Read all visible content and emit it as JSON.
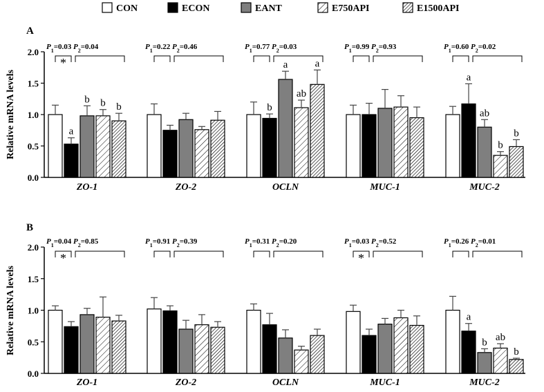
{
  "legend": {
    "items": [
      {
        "label": "CON",
        "pattern": "white"
      },
      {
        "label": "ECON",
        "pattern": "black"
      },
      {
        "label": "EANT",
        "pattern": "gray"
      },
      {
        "label": "E750API",
        "pattern": "sparse-hatch"
      },
      {
        "label": "E1500API",
        "pattern": "dense-hatch"
      }
    ]
  },
  "colors": {
    "axis": "#000000",
    "gray": "#7f7f7f",
    "black": "#000000",
    "white": "#ffffff"
  },
  "chart_data": [
    {
      "panel": "A",
      "type": "bar",
      "ylabel": "Relative mRNA levels",
      "ylim": [
        0,
        2.0
      ],
      "yticks": [
        "0.0",
        "0.5",
        "1.0",
        "1.5",
        "2.0"
      ],
      "categories": [
        "ZO-1",
        "ZO-2",
        "OCLN",
        "MUC-1",
        "MUC-2"
      ],
      "series": [
        {
          "name": "CON",
          "values": [
            1.0,
            1.0,
            1.0,
            1.0,
            1.0
          ],
          "errors": [
            0.15,
            0.17,
            0.2,
            0.15,
            0.13
          ]
        },
        {
          "name": "ECON",
          "values": [
            0.53,
            0.75,
            0.94,
            1.0,
            1.17
          ],
          "errors": [
            0.1,
            0.08,
            0.07,
            0.18,
            0.32
          ]
        },
        {
          "name": "EANT",
          "values": [
            0.98,
            0.92,
            1.56,
            1.1,
            0.8
          ],
          "errors": [
            0.16,
            0.1,
            0.13,
            0.3,
            0.12
          ]
        },
        {
          "name": "E750API",
          "values": [
            0.98,
            0.76,
            1.11,
            1.12,
            0.35
          ],
          "errors": [
            0.1,
            0.05,
            0.12,
            0.18,
            0.06
          ]
        },
        {
          "name": "E1500API",
          "values": [
            0.9,
            0.91,
            1.48,
            0.95,
            0.49
          ],
          "errors": [
            0.12,
            0.14,
            0.23,
            0.17,
            0.11
          ]
        }
      ],
      "letters": [
        [
          "",
          "a",
          "b",
          "b",
          "b"
        ],
        [
          "",
          "",
          "",
          "",
          ""
        ],
        [
          "",
          "b",
          "a",
          "ab",
          "a"
        ],
        [
          "",
          "",
          "",
          "",
          ""
        ],
        [
          "",
          "a",
          "ab",
          "b",
          "b"
        ]
      ],
      "pvalues": [
        {
          "p1": "0.03",
          "p2": "0.04",
          "star": true
        },
        {
          "p1": "0.22",
          "p2": "0.46",
          "star": false
        },
        {
          "p1": "0.77",
          "p2": "0.03",
          "star": false
        },
        {
          "p1": "0.99",
          "p2": "0.93",
          "star": false
        },
        {
          "p1": "0.60",
          "p2": "0.02",
          "star": false
        }
      ]
    },
    {
      "panel": "B",
      "type": "bar",
      "ylabel": "Relative mRNA levels",
      "ylim": [
        0,
        2.0
      ],
      "yticks": [
        "0.0",
        "0.5",
        "1.0",
        "1.5",
        "2.0"
      ],
      "categories": [
        "ZO-1",
        "ZO-2",
        "OCLN",
        "MUC-1",
        "MUC-2"
      ],
      "series": [
        {
          "name": "CON",
          "values": [
            1.0,
            1.02,
            1.0,
            0.98,
            1.0
          ],
          "errors": [
            0.07,
            0.18,
            0.1,
            0.1,
            0.22
          ]
        },
        {
          "name": "ECON",
          "values": [
            0.74,
            0.99,
            0.77,
            0.6,
            0.67
          ],
          "errors": [
            0.08,
            0.08,
            0.18,
            0.1,
            0.12
          ]
        },
        {
          "name": "EANT",
          "values": [
            0.93,
            0.7,
            0.56,
            0.78,
            0.33
          ],
          "errors": [
            0.1,
            0.14,
            0.13,
            0.09,
            0.06
          ]
        },
        {
          "name": "E750API",
          "values": [
            0.89,
            0.77,
            0.37,
            0.88,
            0.4
          ],
          "errors": [
            0.32,
            0.16,
            0.06,
            0.12,
            0.07
          ]
        },
        {
          "name": "E1500API",
          "values": [
            0.83,
            0.73,
            0.6,
            0.76,
            0.22
          ],
          "errors": [
            0.09,
            0.09,
            0.1,
            0.15,
            0.02
          ]
        }
      ],
      "letters": [
        [
          "",
          "",
          "",
          "",
          ""
        ],
        [
          "",
          "",
          "",
          "",
          ""
        ],
        [
          "",
          "",
          "",
          "",
          ""
        ],
        [
          "",
          "",
          "",
          "",
          ""
        ],
        [
          "",
          "a",
          "b",
          "ab",
          "b"
        ]
      ],
      "pvalues": [
        {
          "p1": "0.04",
          "p2": "0.85",
          "star": true
        },
        {
          "p1": "0.91",
          "p2": "0.39",
          "star": false
        },
        {
          "p1": "0.31",
          "p2": "0.20",
          "star": false
        },
        {
          "p1": "0.03",
          "p2": "0.52",
          "star": true
        },
        {
          "p1": "0.26",
          "p2": "0.01",
          "star": false
        }
      ]
    }
  ]
}
